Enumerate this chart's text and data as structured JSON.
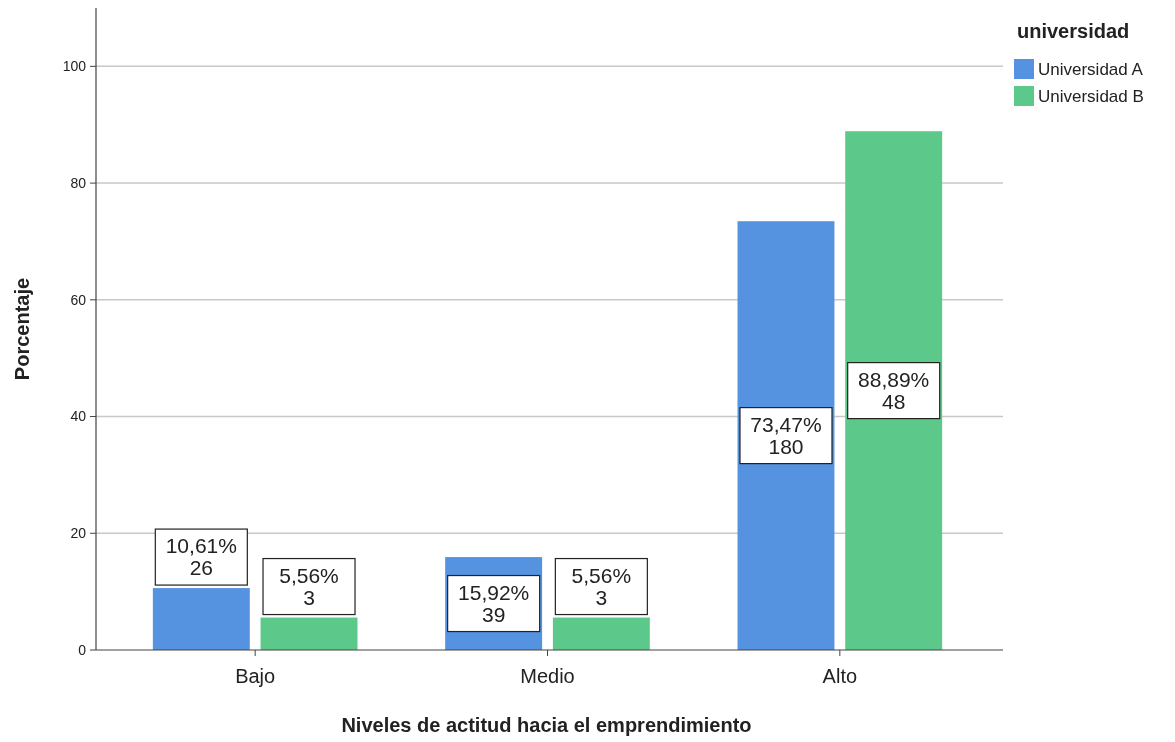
{
  "chart_data": {
    "type": "bar",
    "xlabel": "Niveles de actitud hacia el emprendimiento",
    "ylabel": "Porcentaje",
    "legend_title": "universidad",
    "categories": [
      "Bajo",
      "Medio",
      "Alto"
    ],
    "series": [
      {
        "name": "Universidad A",
        "color": "#5592e0",
        "values": [
          10.61,
          15.92,
          73.47
        ],
        "value_labels": [
          "10,61%\n26",
          "15,92%\n39",
          "73,47%\n180"
        ]
      },
      {
        "name": "Universidad B",
        "color": "#5cc98a",
        "values": [
          5.56,
          5.56,
          88.89
        ],
        "value_labels": [
          "5,56%\n3",
          "5,56%\n3",
          "88,89%\n48"
        ]
      }
    ],
    "ylim": [
      0,
      110
    ],
    "yticks": [
      0,
      20,
      40,
      60,
      80,
      100
    ],
    "grid": "y",
    "legend": "top right"
  }
}
